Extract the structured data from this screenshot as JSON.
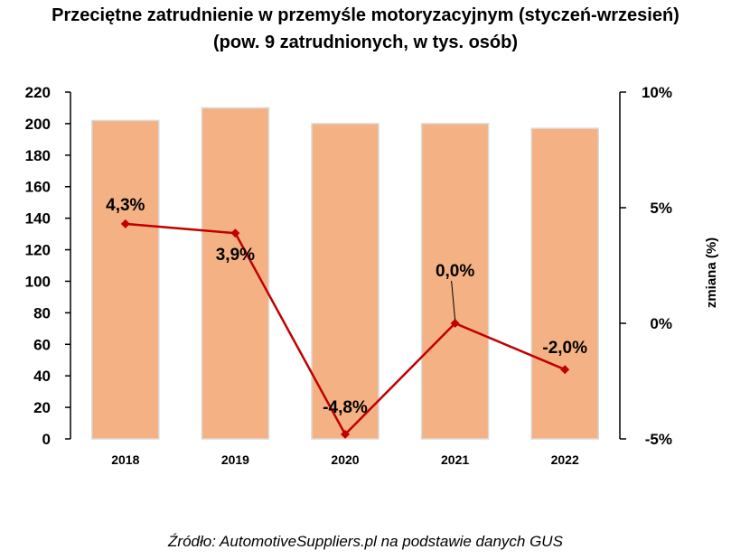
{
  "title_line1": "Przeciętne zatrudnienie w przemyśle motoryzacyjnym (styczeń-wrzesień)",
  "title_line2": "(pow. 9 zatrudnionych, w tys. osób)",
  "source": "Źródło: AutomotiveSuppliers.pl na podstawie danych GUS",
  "colors": {
    "bar": "#F4B183",
    "bar_edge": "#D9D9D9",
    "line": "#C00000",
    "axis": "#000000"
  },
  "chart_data": {
    "type": "bar",
    "categories": [
      "2018",
      "2019",
      "2020",
      "2021",
      "2022"
    ],
    "series": [
      {
        "type": "bar",
        "axis": "left",
        "values": [
          202,
          210,
          200,
          200,
          197
        ]
      },
      {
        "type": "line",
        "axis": "right",
        "values": [
          4.3,
          3.9,
          -4.8,
          0.0,
          -2.0
        ],
        "labels": [
          "4,3%",
          "3,9%",
          "-4,8%",
          "0,0%",
          "-2,0%"
        ]
      }
    ],
    "y_left": {
      "min": 0,
      "max": 220,
      "ticks": [
        "0",
        "20",
        "40",
        "60",
        "80",
        "100",
        "120",
        "140",
        "160",
        "180",
        "200",
        "220"
      ]
    },
    "y_right": {
      "min": -5,
      "max": 10,
      "label": "zmiana (%)",
      "ticks": [
        "-5%",
        "0%",
        "5%",
        "10%"
      ]
    },
    "grid": false,
    "legend": "none"
  }
}
